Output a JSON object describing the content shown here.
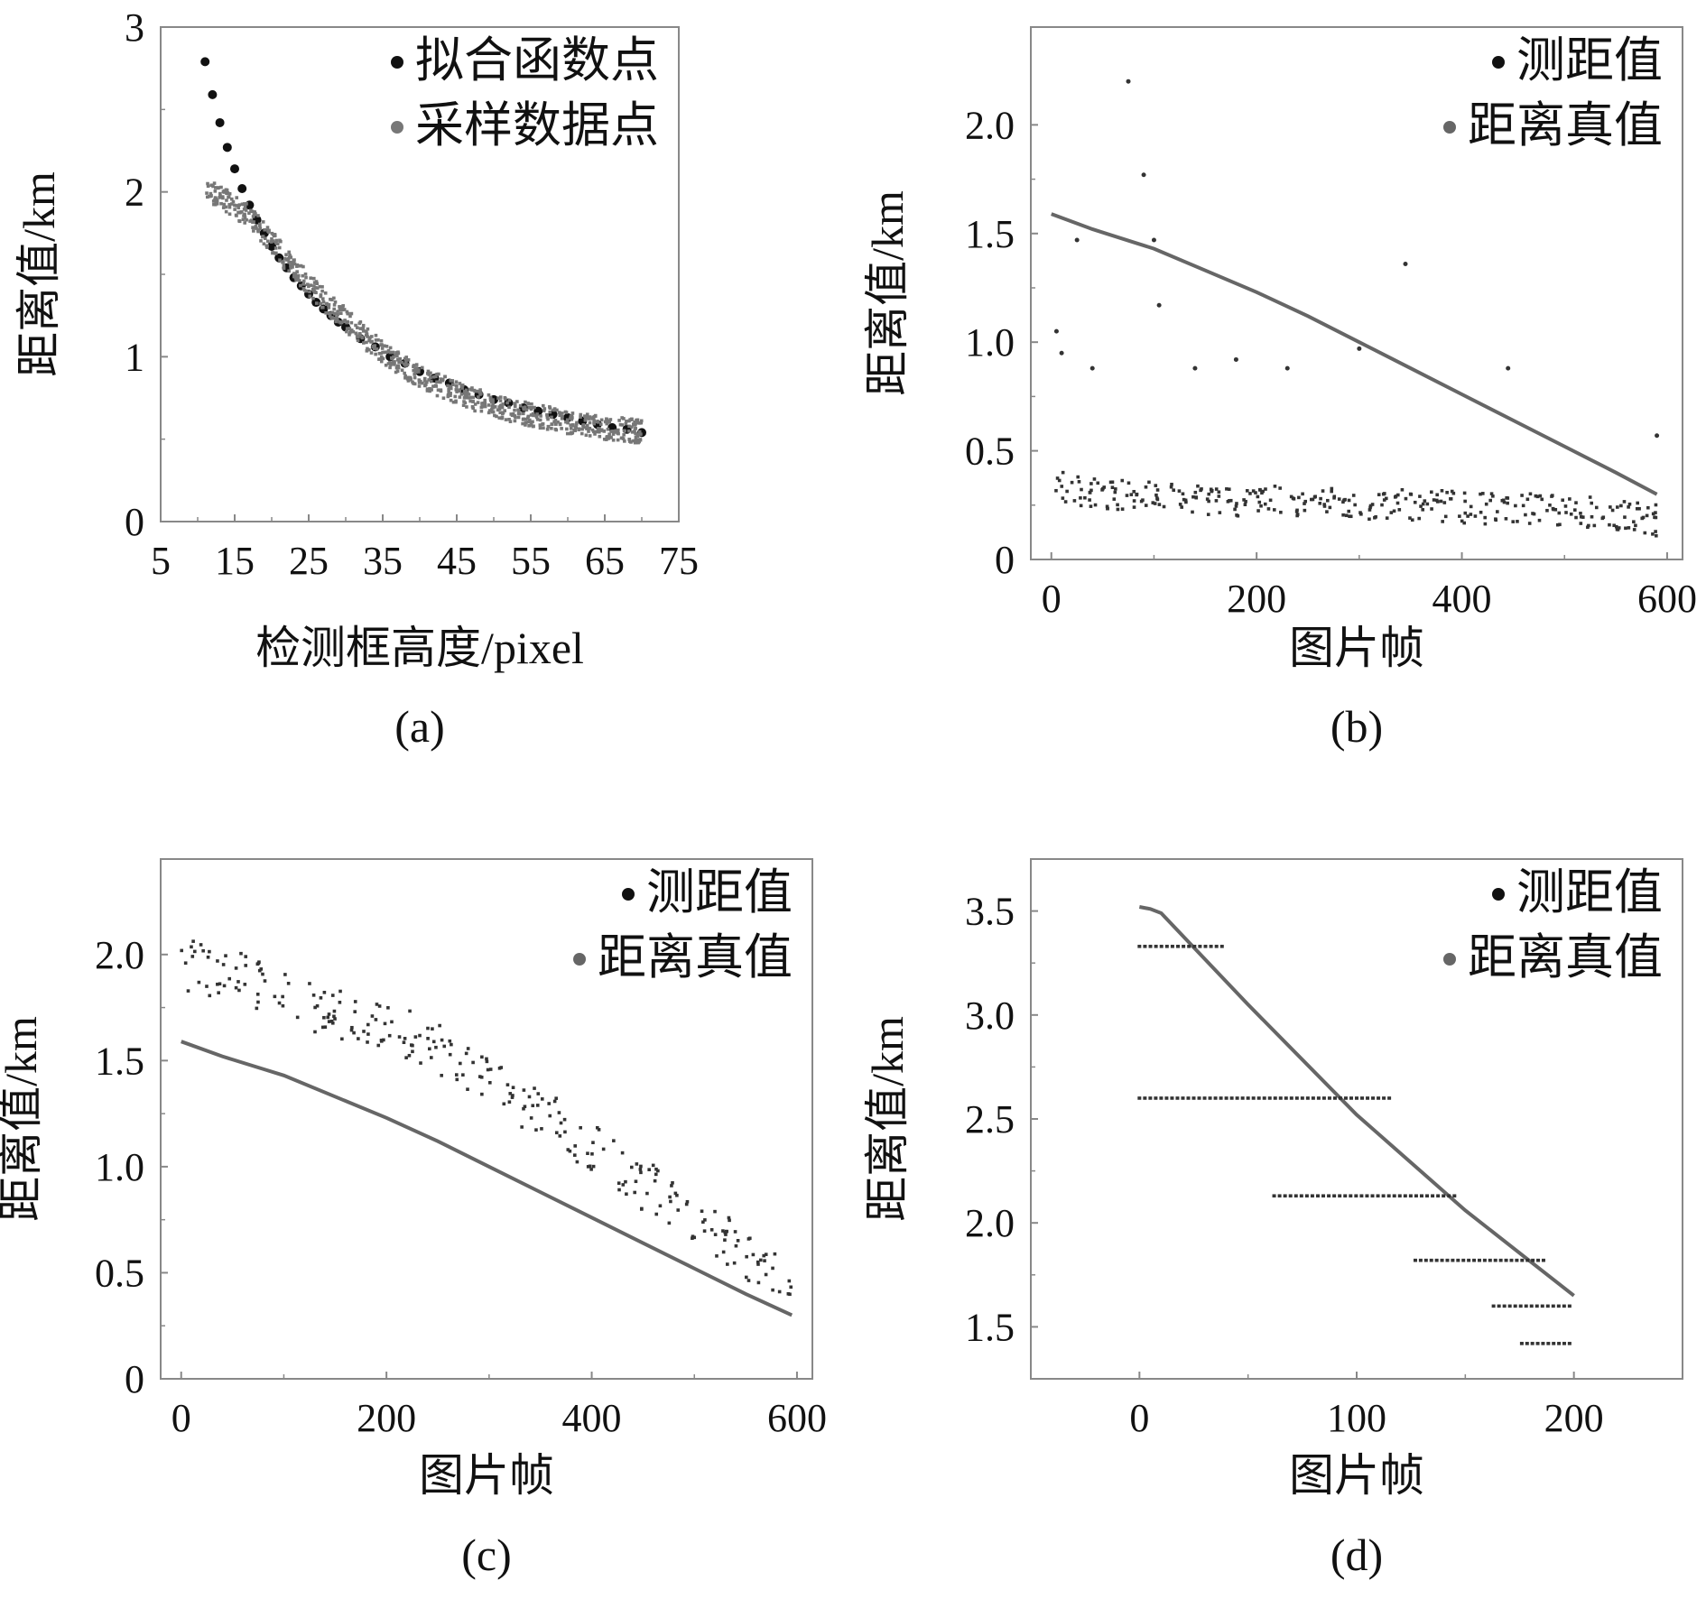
{
  "figure": {
    "colors": {
      "frame": "#888888",
      "fit": "#111111",
      "sample": "#777777",
      "measured": "#333333",
      "truth": "#666666"
    }
  },
  "chart_data": [
    {
      "id": "a",
      "type": "scatter",
      "caption": "(a)",
      "xlabel": "检测框高度/pixel",
      "ylabel": "距离值/km",
      "xlim": [
        5,
        75
      ],
      "ylim": [
        0,
        3
      ],
      "xticks": [
        "5",
        "15",
        "25",
        "35",
        "45",
        "55",
        "65",
        "75"
      ],
      "yticks": [
        "0",
        "1",
        "2",
        "3"
      ],
      "legend": [
        {
          "label": "拟合函数点",
          "color": "#111111"
        },
        {
          "label": "采样数据点",
          "color": "#777777"
        }
      ],
      "series": [
        {
          "name": "拟合函数点",
          "kind": "points",
          "x": [
            11,
            12,
            13,
            14,
            15,
            16,
            17,
            18,
            19,
            20,
            21,
            22,
            23,
            24,
            25,
            26,
            27,
            28,
            29,
            30,
            32,
            34,
            36,
            38,
            40,
            42,
            44,
            46,
            48,
            50,
            52,
            54,
            56,
            58,
            60,
            62,
            64,
            66,
            68,
            70
          ],
          "y": [
            2.79,
            2.59,
            2.42,
            2.27,
            2.14,
            2.02,
            1.92,
            1.83,
            1.75,
            1.67,
            1.6,
            1.54,
            1.48,
            1.43,
            1.38,
            1.33,
            1.29,
            1.25,
            1.21,
            1.18,
            1.11,
            1.06,
            1.0,
            0.96,
            0.91,
            0.87,
            0.84,
            0.8,
            0.77,
            0.74,
            0.72,
            0.69,
            0.67,
            0.65,
            0.63,
            0.61,
            0.59,
            0.57,
            0.56,
            0.54
          ]
        },
        {
          "name": "采样数据点",
          "kind": "cloud",
          "x": [
            11,
            13,
            15,
            17,
            19,
            21,
            23,
            25,
            27,
            29,
            31,
            33,
            35,
            37,
            39,
            41,
            43,
            45,
            47,
            49,
            51,
            53,
            55,
            57,
            59,
            61,
            63,
            65,
            67,
            69,
            70
          ],
          "y": [
            2.0,
            1.97,
            1.92,
            1.84,
            1.75,
            1.64,
            1.54,
            1.44,
            1.35,
            1.27,
            1.18,
            1.1,
            1.03,
            0.97,
            0.91,
            0.86,
            0.82,
            0.78,
            0.75,
            0.72,
            0.69,
            0.67,
            0.65,
            0.63,
            0.61,
            0.6,
            0.59,
            0.57,
            0.56,
            0.55,
            0.55
          ],
          "spread": 0.12
        }
      ]
    },
    {
      "id": "b",
      "type": "scatter",
      "caption": "(b)",
      "xlabel": "图片帧",
      "ylabel": "距离值/km",
      "xlim": [
        -20,
        615
      ],
      "ylim": [
        0,
        2.45
      ],
      "xticks": [
        "0",
        "200",
        "400",
        "600"
      ],
      "ytick_values": [
        0,
        0.5,
        1.0,
        1.5,
        2.0
      ],
      "yticks": [
        "0",
        "0.5",
        "1.0",
        "1.5",
        "2.0"
      ],
      "legend": [
        {
          "label": "测距值",
          "color": "#111111"
        },
        {
          "label": "距离真值",
          "color": "#666666"
        }
      ],
      "series": [
        {
          "name": "距离真值",
          "kind": "line",
          "x": [
            0,
            40,
            80,
            100,
            150,
            200,
            250,
            300,
            350,
            400,
            450,
            500,
            550,
            590
          ],
          "y": [
            1.59,
            1.52,
            1.46,
            1.43,
            1.33,
            1.23,
            1.12,
            1.0,
            0.88,
            0.76,
            0.64,
            0.52,
            0.4,
            0.3
          ]
        },
        {
          "name": "测距值",
          "kind": "cloud",
          "x": [
            0,
            40,
            80,
            120,
            160,
            200,
            240,
            280,
            320,
            360,
            400,
            440,
            480,
            520,
            560,
            590
          ],
          "y": [
            0.35,
            0.3,
            0.3,
            0.28,
            0.27,
            0.27,
            0.26,
            0.26,
            0.25,
            0.25,
            0.24,
            0.23,
            0.23,
            0.22,
            0.2,
            0.18
          ],
          "spread": 0.12
        },
        {
          "name": "测距值-outliers",
          "kind": "points",
          "x": [
            5,
            10,
            25,
            40,
            75,
            90,
            100,
            105,
            140,
            180,
            230,
            300,
            345,
            445,
            590
          ],
          "y": [
            1.05,
            0.95,
            1.47,
            0.88,
            2.2,
            1.77,
            1.47,
            1.17,
            0.88,
            0.92,
            0.88,
            0.97,
            1.36,
            0.88,
            0.57
          ]
        }
      ]
    },
    {
      "id": "c",
      "type": "scatter",
      "caption": "(c)",
      "xlabel": "图片帧",
      "ylabel": "距离值/km",
      "xlim": [
        -20,
        615
      ],
      "ylim": [
        0,
        2.45
      ],
      "xticks": [
        "0",
        "200",
        "400",
        "600"
      ],
      "ytick_values": [
        0,
        0.5,
        1.0,
        1.5,
        2.0
      ],
      "yticks": [
        "0",
        "0.5",
        "1.0",
        "1.5",
        "2.0"
      ],
      "legend": [
        {
          "label": "测距值",
          "color": "#111111"
        },
        {
          "label": "距离真值",
          "color": "#666666"
        }
      ],
      "series": [
        {
          "name": "距离真值",
          "kind": "line",
          "x": [
            0,
            40,
            80,
            100,
            150,
            200,
            250,
            300,
            350,
            400,
            450,
            500,
            550,
            595
          ],
          "y": [
            1.59,
            1.52,
            1.46,
            1.43,
            1.33,
            1.23,
            1.12,
            1.0,
            0.88,
            0.76,
            0.64,
            0.52,
            0.4,
            0.3
          ]
        },
        {
          "name": "测距值",
          "kind": "cloud",
          "x": [
            0,
            50,
            100,
            150,
            200,
            250,
            300,
            350,
            400,
            450,
            500,
            550,
            595
          ],
          "y": [
            1.95,
            1.88,
            1.8,
            1.73,
            1.66,
            1.55,
            1.4,
            1.25,
            1.08,
            0.9,
            0.74,
            0.6,
            0.5
          ],
          "spread": 0.3
        }
      ]
    },
    {
      "id": "d",
      "type": "scatter",
      "caption": "(d)",
      "xlabel": "图片帧",
      "ylabel": "距离值/km",
      "xlim": [
        -50,
        250
      ],
      "ylim": [
        1.25,
        3.75
      ],
      "xticks": [
        "0",
        "100",
        "200"
      ],
      "xtick_values": [
        0,
        100,
        200
      ],
      "ytick_values": [
        1.5,
        2.0,
        2.5,
        3.0,
        3.5
      ],
      "yticks": [
        "1.5",
        "2.0",
        "2.5",
        "3.0",
        "3.5"
      ],
      "legend": [
        {
          "label": "测距值",
          "color": "#111111"
        },
        {
          "label": "距离真值",
          "color": "#666666"
        }
      ],
      "series": [
        {
          "name": "距离真值",
          "kind": "line",
          "x": [
            0,
            5,
            10,
            20,
            50,
            100,
            150,
            200
          ],
          "y": [
            3.52,
            3.51,
            3.49,
            3.38,
            3.05,
            2.52,
            2.06,
            1.65
          ]
        },
        {
          "name": "测距值",
          "kind": "levels",
          "levels": [
            {
              "y": 3.33,
              "x0": 0,
              "x1": 38
            },
            {
              "y": 2.6,
              "x0": 0,
              "x1": 115
            },
            {
              "y": 2.13,
              "x0": 62,
              "x1": 145
            },
            {
              "y": 1.82,
              "x0": 127,
              "x1": 186
            },
            {
              "y": 1.6,
              "x0": 163,
              "x1": 198
            },
            {
              "y": 1.42,
              "x0": 176,
              "x1": 198
            }
          ]
        }
      ]
    }
  ]
}
